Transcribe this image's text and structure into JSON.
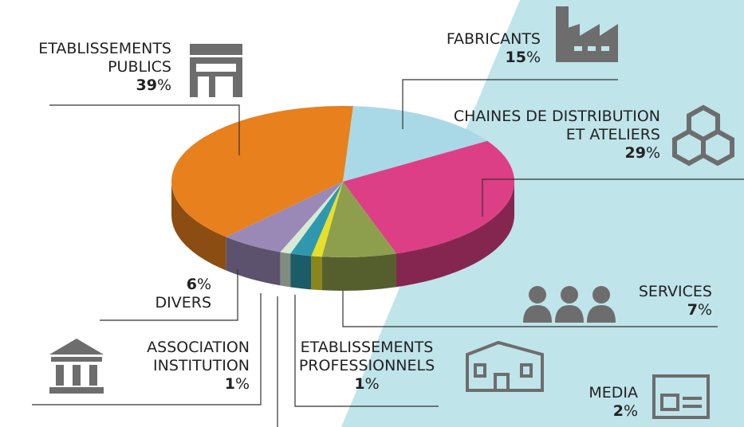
{
  "chart_data": {
    "type": "pie",
    "unit": "%",
    "categories": [
      "FABRICANTS",
      "CHAINES DE DISTRIBUTION\nET ATELIERS",
      "SERVICES",
      "ETABLISSEMENTS\nPROFESSIONNELS",
      "MEDIA",
      "ASSOCIATION\nINSTITUTION",
      "DIVERS",
      "ETABLISSEMENTS\nPUBLICS"
    ],
    "values": [
      15,
      29,
      7,
      1,
      2,
      1,
      6,
      39
    ],
    "colors": [
      "#a9d9e6",
      "#dd3f86",
      "#8d9f4c",
      "#e6e02a",
      "#2f98ae",
      "#d6ead4",
      "#9a88b6",
      "#e8801d"
    ]
  }
}
